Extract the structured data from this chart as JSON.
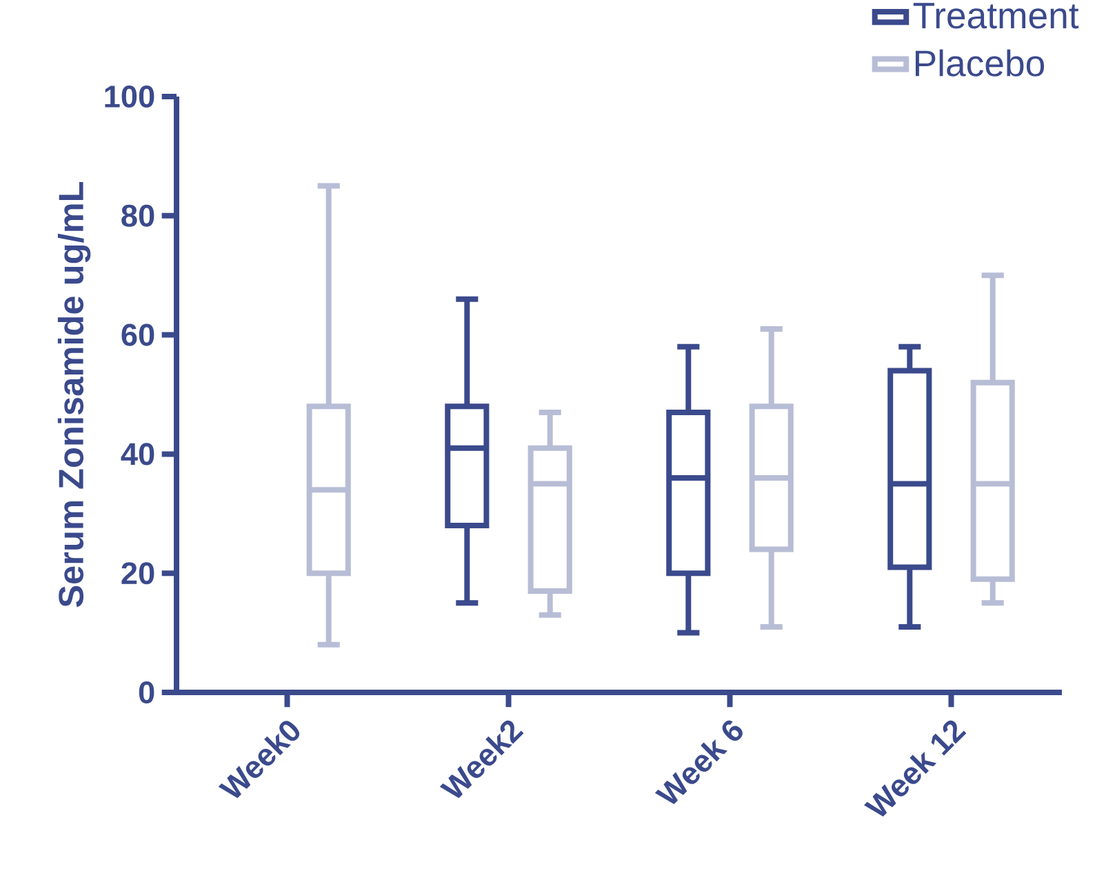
{
  "chart_data": {
    "type": "box",
    "ylabel": "Serum Zonisamide ug/mL",
    "categories": [
      "Week0",
      "Week2",
      "Week 6",
      "Week 12"
    ],
    "ylim": [
      0,
      100
    ],
    "yticks": [
      0,
      20,
      40,
      60,
      80,
      100
    ],
    "legend": "top right",
    "series": [
      {
        "name": "Treatment",
        "color": "#3b4a8c",
        "boxes": [
          null,
          {
            "low": 15,
            "q1": 28,
            "median": 41,
            "q3": 48,
            "high": 66
          },
          {
            "low": 10,
            "q1": 20,
            "median": 36,
            "q3": 47,
            "high": 58
          },
          {
            "low": 11,
            "q1": 21,
            "median": 35,
            "q3": 54,
            "high": 58
          }
        ]
      },
      {
        "name": "Placebo",
        "color": "#b8bdd6",
        "boxes": [
          {
            "low": 8,
            "q1": 20,
            "median": 34,
            "q3": 48,
            "high": 85
          },
          {
            "low": 13,
            "q1": 17,
            "median": 35,
            "q3": 41,
            "high": 47
          },
          {
            "low": 11,
            "q1": 24,
            "median": 36,
            "q3": 48,
            "high": 61
          },
          {
            "low": 15,
            "q1": 19,
            "median": 35,
            "q3": 52,
            "high": 70
          }
        ]
      }
    ]
  }
}
